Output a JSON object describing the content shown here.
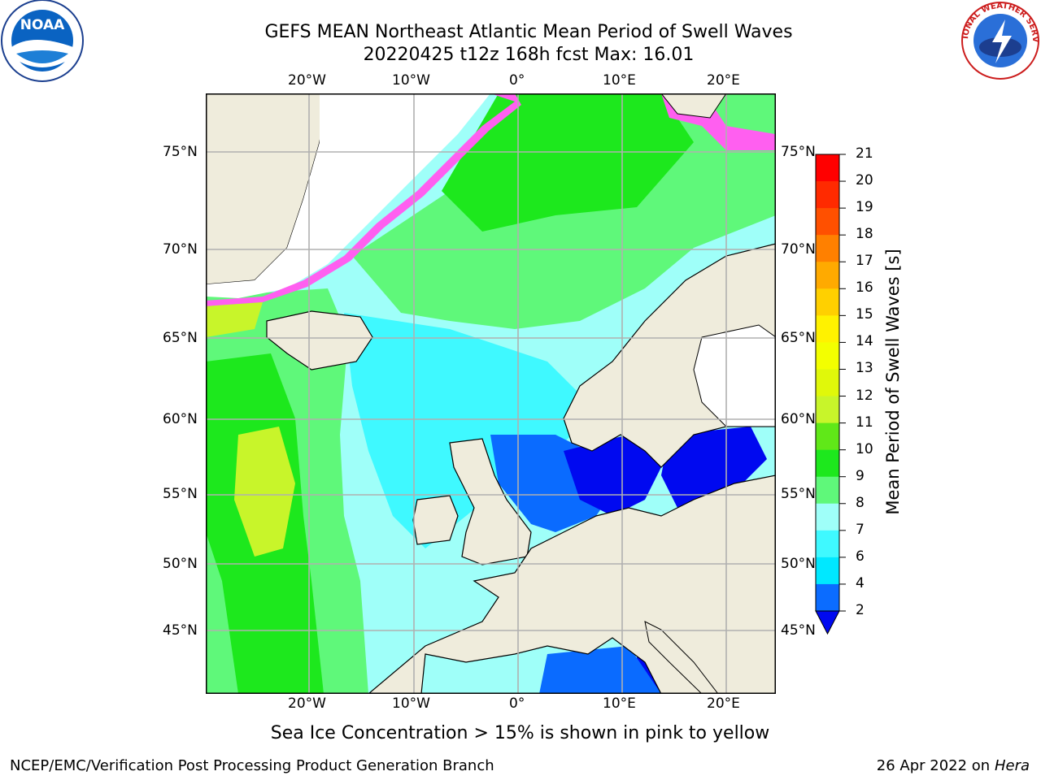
{
  "header": {
    "title_line1": "GEFS MEAN Northeast Atlantic Mean Period of Swell Waves",
    "title_line2": "20220425 t12z 168h fcst   Max: 16.01"
  },
  "logos": {
    "left": "noaa-logo",
    "left_text": "NOAA",
    "right": "national-weather-service-logo",
    "right_text": "NATIONAL WEATHER SERVICE"
  },
  "map": {
    "lon_ticks_top": [
      "20°W",
      "10°W",
      "0°",
      "10°E",
      "20°E"
    ],
    "lon_ticks_bottom": [
      "20°W",
      "10°W",
      "0°",
      "10°E",
      "20°E"
    ],
    "lat_ticks_left": [
      "75°N",
      "70°N",
      "65°N",
      "60°N",
      "55°N",
      "50°N",
      "45°N"
    ],
    "lat_ticks_right": [
      "75°N",
      "70°N",
      "65°N",
      "60°N",
      "55°N",
      "50°N",
      "45°N"
    ],
    "colors": {
      "land": "#efecdc",
      "ocean_cyan": "#3ff9ff",
      "ocean_lightcyan": "#9ffff9",
      "ocean_green": "#5ff87a",
      "ocean_brightgreen": "#1de81d",
      "ocean_blue": "#0a6bff",
      "ocean_darkblue": "#0009f0",
      "ice_pink": "#ff5ff0",
      "yellowgreen": "#c8f52a",
      "grid": "#b0b0b0"
    }
  },
  "colorbar": {
    "label": "Mean Period of Swell Waves [s]",
    "ticks": [
      "2",
      "4",
      "6",
      "7",
      "8",
      "9",
      "10",
      "11",
      "12",
      "13",
      "14",
      "15",
      "16",
      "17",
      "18",
      "19",
      "20",
      "21"
    ],
    "colors": [
      "#0b6cff",
      "#00e8ff",
      "#3ff9ff",
      "#9ffff9",
      "#5ff87a",
      "#1de81d",
      "#60e818",
      "#c8f52a",
      "#e0f80a",
      "#f3ff00",
      "#fff200",
      "#ffd000",
      "#ffaa00",
      "#ff8000",
      "#ff5000",
      "#ff2a00",
      "#ff0000"
    ],
    "under_color": "#0009f0"
  },
  "caption": "Sea Ice Concentration > 15% is shown in pink to yellow",
  "footer": {
    "left": "NCEP/EMC/Verification Post Processing Product Generation Branch",
    "right_date": "26 Apr 2022 on ",
    "right_machine": "Hera"
  }
}
